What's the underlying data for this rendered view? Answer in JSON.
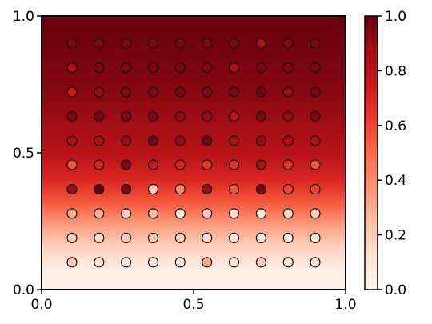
{
  "chart_data": {
    "type": "scatter",
    "title": "",
    "xlabel": "",
    "ylabel": "",
    "xlim": [
      0.0,
      1.0
    ],
    "ylim": [
      0.0,
      1.0
    ],
    "xticks": [
      0.0,
      0.5,
      1.0
    ],
    "yticks": [
      0.0,
      0.5,
      1.0
    ],
    "xtick_labels": [
      "0.0",
      "0.5",
      "1.0"
    ],
    "ytick_labels": [
      "0.0",
      "0.5",
      "1.0"
    ],
    "colormap": "Reds",
    "colorbar": {
      "range": [
        0.0,
        1.0
      ],
      "ticks": [
        0.0,
        0.2,
        0.4,
        0.6,
        0.8,
        1.0
      ],
      "tick_labels": [
        "0.0",
        "0.2",
        "0.4",
        "0.6",
        "0.8",
        "1.0"
      ]
    },
    "background_field": {
      "description": "smooth interpolated surface over x,y in [0,1]",
      "y_profile": [
        {
          "y": 0.0,
          "v": 0.02
        },
        {
          "y": 0.08,
          "v": 0.06
        },
        {
          "y": 0.16,
          "v": 0.18
        },
        {
          "y": 0.24,
          "v": 0.35
        },
        {
          "y": 0.32,
          "v": 0.55
        },
        {
          "y": 0.4,
          "v": 0.7
        },
        {
          "y": 0.5,
          "v": 0.82
        },
        {
          "y": 0.6,
          "v": 0.88
        },
        {
          "y": 0.7,
          "v": 0.93
        },
        {
          "y": 0.85,
          "v": 0.97
        },
        {
          "y": 1.0,
          "v": 1.0
        }
      ]
    },
    "grid_x": [
      0.1,
      0.189,
      0.278,
      0.367,
      0.456,
      0.544,
      0.633,
      0.722,
      0.811,
      0.9
    ],
    "grid_y": [
      0.9,
      0.811,
      0.722,
      0.633,
      0.544,
      0.456,
      0.367,
      0.278,
      0.189,
      0.1
    ],
    "point_values": [
      [
        0.95,
        0.95,
        0.95,
        0.95,
        0.95,
        0.95,
        0.95,
        0.85,
        0.95,
        0.95
      ],
      [
        0.85,
        0.95,
        0.95,
        0.95,
        0.95,
        0.95,
        0.85,
        0.95,
        0.95,
        0.95
      ],
      [
        0.75,
        0.9,
        0.95,
        0.95,
        0.95,
        0.95,
        0.95,
        0.97,
        0.9,
        0.95
      ],
      [
        0.95,
        0.97,
        0.95,
        0.95,
        0.9,
        0.9,
        0.8,
        0.95,
        0.9,
        0.95
      ],
      [
        0.85,
        0.85,
        0.9,
        0.97,
        0.9,
        0.98,
        0.85,
        0.9,
        0.85,
        0.85
      ],
      [
        0.55,
        0.7,
        0.95,
        0.75,
        0.7,
        0.65,
        0.65,
        0.85,
        0.65,
        0.55
      ],
      [
        0.9,
        1.0,
        0.95,
        0.2,
        0.4,
        0.9,
        0.55,
        0.95,
        0.6,
        0.6
      ],
      [
        0.3,
        0.3,
        0.2,
        0.25,
        0.1,
        0.2,
        0.15,
        0.1,
        0.15,
        0.2
      ],
      [
        0.2,
        0.15,
        0.2,
        0.2,
        0.2,
        0.1,
        0.1,
        0.05,
        0.05,
        0.05
      ],
      [
        0.2,
        0.1,
        0.05,
        0.05,
        0.1,
        0.3,
        0.1,
        0.2,
        0.1,
        0.1
      ]
    ]
  }
}
